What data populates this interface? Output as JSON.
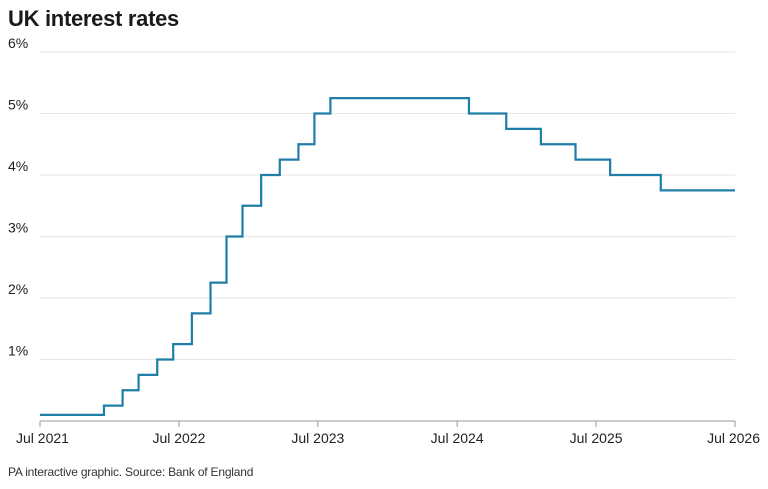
{
  "title": "UK interest rates",
  "footer": "PA interactive graphic. Source: Bank of England",
  "colors": {
    "line": "#1f7ea8",
    "grid": "#e6e6e6",
    "axis": "#999999"
  },
  "chart_data": {
    "type": "line",
    "step": true,
    "title": "UK interest rates",
    "xlabel": "",
    "ylabel": "",
    "ylim": [
      0,
      6
    ],
    "xlim": [
      "2021-07-01",
      "2026-07-01"
    ],
    "grid": true,
    "yticks": [
      {
        "value": 1,
        "label": "1%"
      },
      {
        "value": 2,
        "label": "2%"
      },
      {
        "value": 3,
        "label": "3%"
      },
      {
        "value": 4,
        "label": "4%"
      },
      {
        "value": 5,
        "label": "5%"
      },
      {
        "value": 6,
        "label": "6%"
      }
    ],
    "xticks": [
      {
        "date": "2021-07-01",
        "label": "Jul 2021"
      },
      {
        "date": "2022-07-01",
        "label": "Jul 2022"
      },
      {
        "date": "2023-07-01",
        "label": "Jul 2023"
      },
      {
        "date": "2024-07-01",
        "label": "Jul 2024"
      },
      {
        "date": "2025-07-01",
        "label": "Jul 2025"
      },
      {
        "date": "2026-07-01",
        "label": "Jul 2026"
      }
    ],
    "series": [
      {
        "points": [
          {
            "date": "2021-07-01",
            "value": 0.1
          },
          {
            "date": "2021-12-16",
            "value": 0.25
          },
          {
            "date": "2022-02-03",
            "value": 0.5
          },
          {
            "date": "2022-03-17",
            "value": 0.75
          },
          {
            "date": "2022-05-05",
            "value": 1.0
          },
          {
            "date": "2022-06-16",
            "value": 1.25
          },
          {
            "date": "2022-08-04",
            "value": 1.75
          },
          {
            "date": "2022-09-22",
            "value": 2.25
          },
          {
            "date": "2022-11-03",
            "value": 3.0
          },
          {
            "date": "2022-12-15",
            "value": 3.5
          },
          {
            "date": "2023-02-02",
            "value": 4.0
          },
          {
            "date": "2023-03-23",
            "value": 4.25
          },
          {
            "date": "2023-05-11",
            "value": 4.5
          },
          {
            "date": "2023-06-22",
            "value": 5.0
          },
          {
            "date": "2023-08-03",
            "value": 5.25
          },
          {
            "date": "2024-08-01",
            "value": 5.0
          },
          {
            "date": "2024-11-07",
            "value": 4.75
          },
          {
            "date": "2025-02-06",
            "value": 4.5
          },
          {
            "date": "2025-05-08",
            "value": 4.25
          },
          {
            "date": "2025-08-07",
            "value": 4.0
          },
          {
            "date": "2025-12-18",
            "value": 3.75
          },
          {
            "date": "2026-07-01",
            "value": 3.75
          }
        ]
      }
    ]
  }
}
